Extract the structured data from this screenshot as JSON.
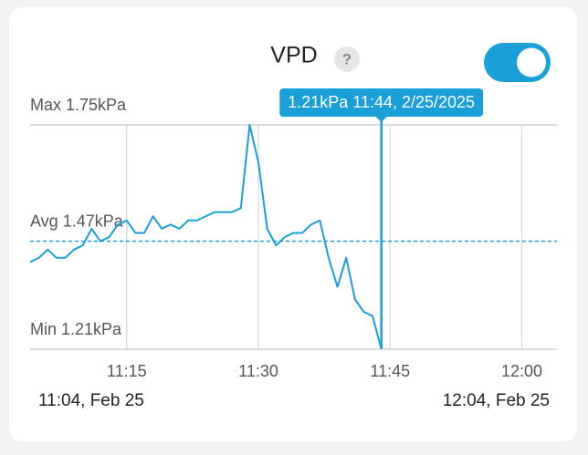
{
  "header": {
    "title": "VPD",
    "help": "?",
    "toggle_on": true
  },
  "chart_data": {
    "type": "line",
    "x": [
      "11:04",
      "11:05",
      "11:06",
      "11:07",
      "11:08",
      "11:09",
      "11:10",
      "11:11",
      "11:12",
      "11:13",
      "11:14",
      "11:15",
      "11:16",
      "11:17",
      "11:18",
      "11:19",
      "11:20",
      "11:21",
      "11:22",
      "11:23",
      "11:24",
      "11:25",
      "11:26",
      "11:27",
      "11:28",
      "11:29",
      "11:30",
      "11:31",
      "11:32",
      "11:33",
      "11:34",
      "11:35",
      "11:36",
      "11:37",
      "11:38",
      "11:39",
      "11:40",
      "11:41",
      "11:42",
      "11:43",
      "11:44"
    ],
    "values": [
      1.42,
      1.43,
      1.45,
      1.43,
      1.43,
      1.45,
      1.46,
      1.5,
      1.47,
      1.48,
      1.51,
      1.52,
      1.49,
      1.49,
      1.53,
      1.5,
      1.51,
      1.5,
      1.52,
      1.52,
      1.53,
      1.54,
      1.54,
      1.54,
      1.55,
      1.75,
      1.66,
      1.5,
      1.46,
      1.48,
      1.49,
      1.49,
      1.51,
      1.52,
      1.43,
      1.36,
      1.43,
      1.33,
      1.3,
      1.29,
      1.21
    ],
    "color": "#1a9fd8",
    "xlim": [
      "11:04",
      "12:04"
    ],
    "xticks": [
      "11:15",
      "11:30",
      "11:45",
      "12:00"
    ],
    "ylim": [
      1.21,
      1.75
    ],
    "yticks": [
      {
        "value": 1.75,
        "label": "Max 1.75kPa"
      },
      {
        "value": 1.21,
        "label": "Min 1.21kPa"
      }
    ],
    "average": {
      "value": 1.47,
      "label": "Avg 1.47kPa"
    },
    "range_labels": [
      "11:04, Feb 25",
      "12:04, Feb 25"
    ],
    "cursor": {
      "x": "11:44",
      "label": "1.21kPa 11:44, 2/25/2025"
    },
    "grid": true
  }
}
